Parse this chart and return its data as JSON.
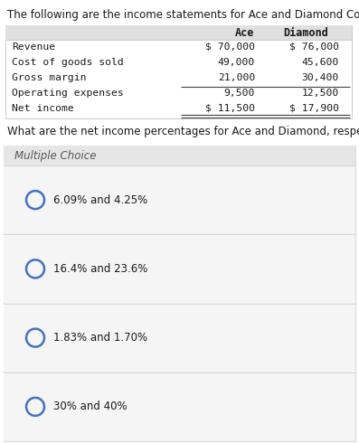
{
  "title": "The following are the income statements for Ace and Diamond Companies.",
  "title_fontsize": 8.5,
  "table_rows": [
    [
      "Revenue",
      "$ 70,000",
      "$ 76,000"
    ],
    [
      "Cost of goods sold",
      "49,000",
      "45,600"
    ],
    [
      "Gross margin",
      "21,000",
      "30,400"
    ],
    [
      "Operating expenses",
      "9,500",
      "12,500"
    ],
    [
      "Net income",
      "$ 11,500",
      "$ 17,900"
    ]
  ],
  "question": "What are the net income percentages for Ace and Diamond, respectively?",
  "question_fontsize": 8.5,
  "mc_label": "Multiple Choice",
  "mc_fontsize": 8.5,
  "choices": [
    "6.09% and 4.25%",
    "16.4% and 23.6%",
    "1.83% and 1.70%",
    "30% and 40%"
  ],
  "choice_fontsize": 8.5,
  "bg_white": "#ffffff",
  "bg_light": "#f0f0f0",
  "bg_header": "#e0e0e0",
  "circle_color": "#4472c4",
  "text_color": "#1a1a1a",
  "border_color": "#cccccc",
  "line_color": "#444444",
  "mono_font": "monospace",
  "sans_font": "DejaVu Sans"
}
